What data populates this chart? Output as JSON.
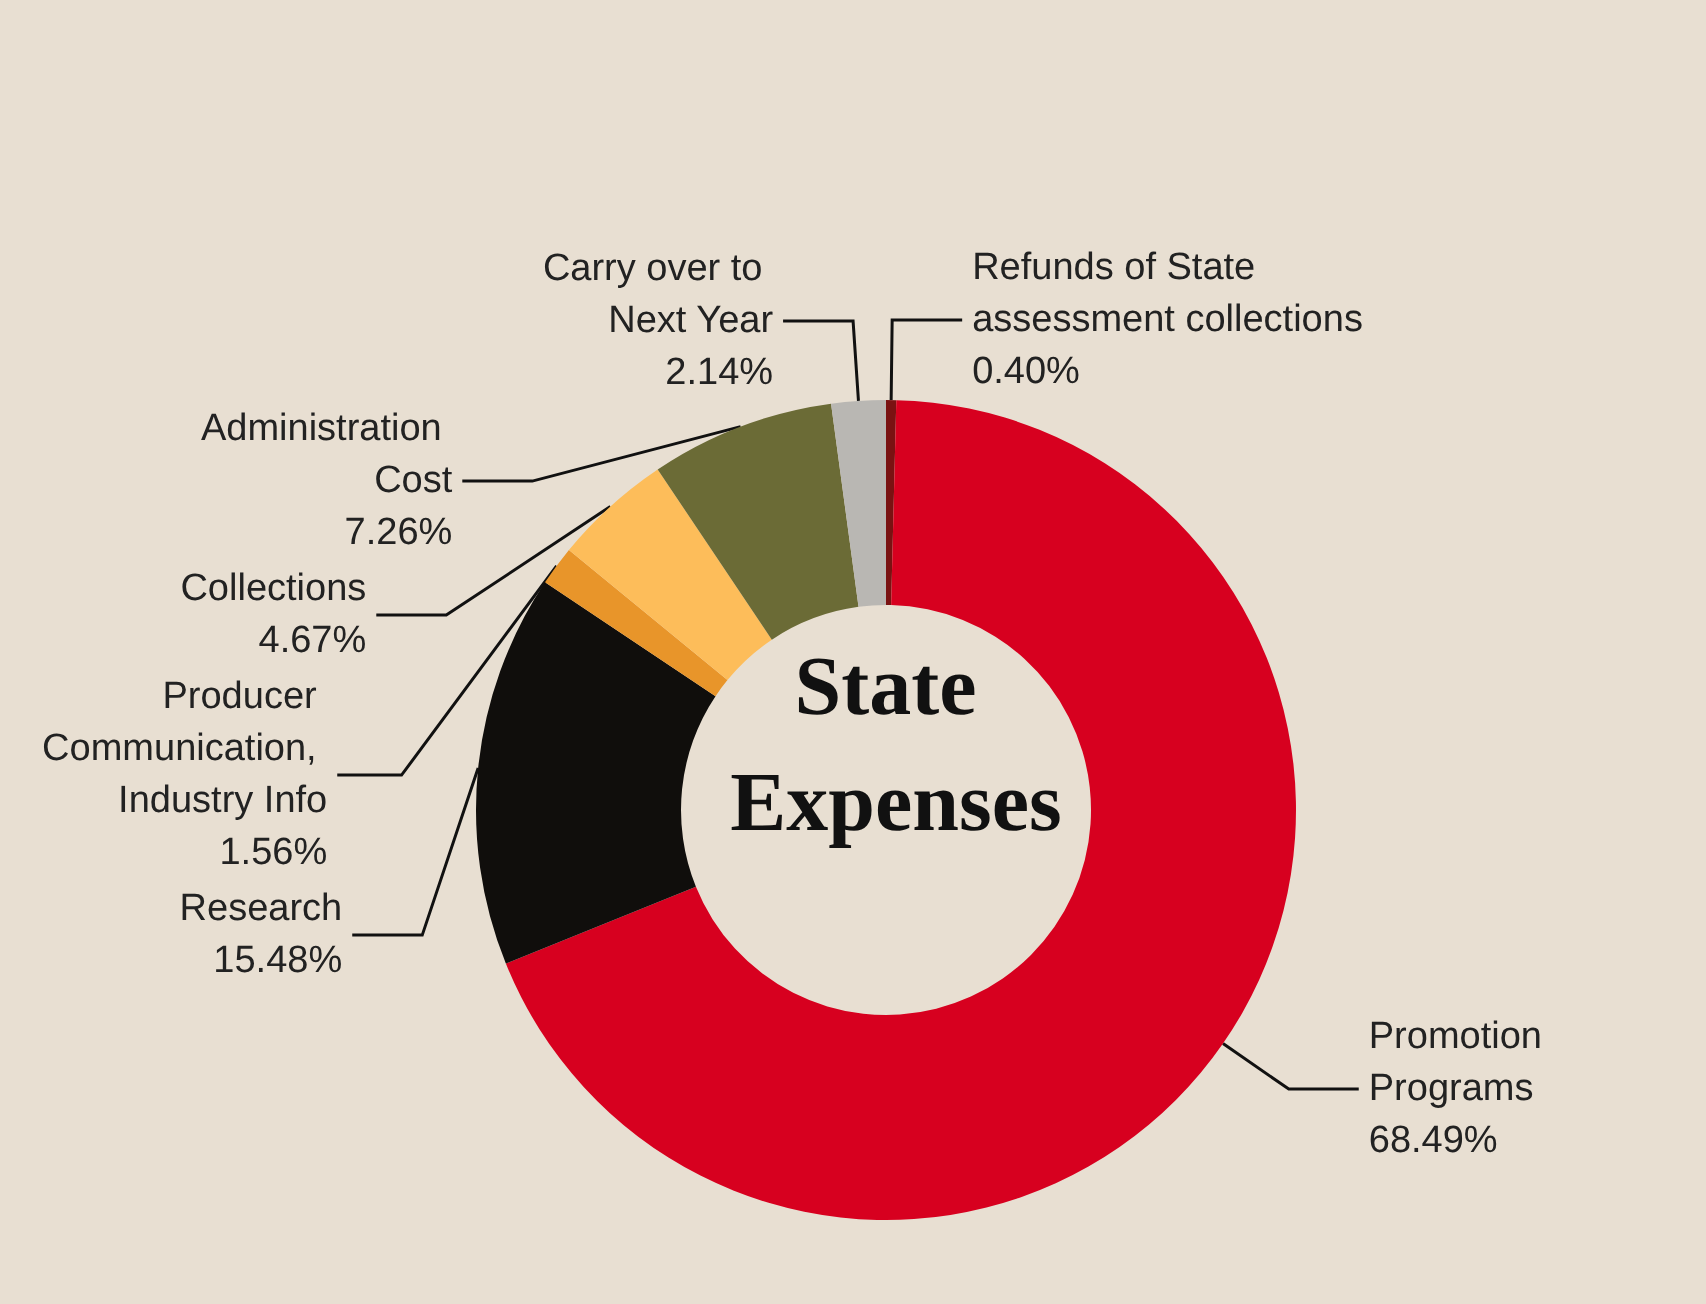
{
  "chart_data": {
    "type": "donut",
    "title": "State Expenses",
    "categories": [
      "Refunds of State assessment collections",
      "Promotion Programs",
      "Research",
      "Producer Communication, Industry Info",
      "Collections",
      "Administration Cost",
      "Carry over to Next Year"
    ],
    "values": [
      0.4,
      68.49,
      15.48,
      1.56,
      4.67,
      7.26,
      2.14
    ],
    "value_labels": [
      "0.40%",
      "68.49%",
      "15.48%",
      "1.56%",
      "4.67%",
      "7.26%",
      "2.14%"
    ],
    "colors": [
      "#7a1212",
      "#d7001f",
      "#100e0c",
      "#e8952a",
      "#fdbd5a",
      "#6b6b36",
      "#b9b7b3"
    ],
    "legend": false
  }
}
